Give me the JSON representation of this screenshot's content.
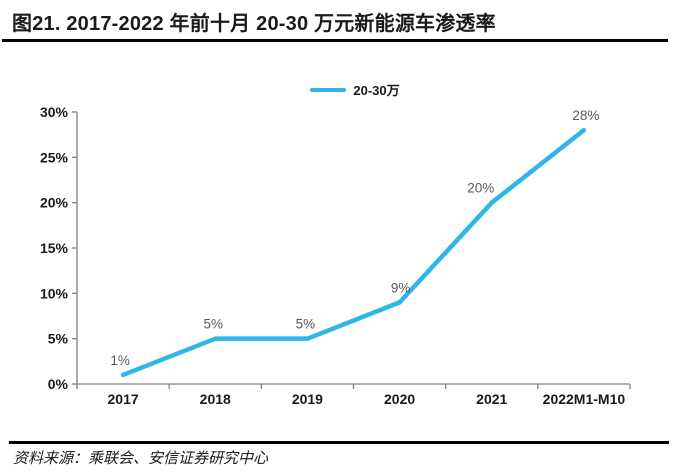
{
  "header": {
    "title": "图21. 2017-2022 年前十月 20-30 万元新能源车渗透率"
  },
  "legend": {
    "label": "20-30万"
  },
  "colors": {
    "line": "#2FB5E7",
    "axis": "#808080",
    "tick_label": "#1A1A1A",
    "data_label": "#595959",
    "separator": "#000000"
  },
  "chart_data": {
    "type": "line",
    "title": "图21. 2017-2022 年前十月 20-30 万元新能源车渗透率",
    "categories": [
      "2017",
      "2018",
      "2019",
      "2020",
      "2021",
      "2022M1-M10"
    ],
    "series": [
      {
        "name": "20-30万",
        "values": [
          1,
          5,
          5,
          9,
          20,
          28
        ]
      }
    ],
    "data_labels": [
      "1%",
      "5%",
      "5%",
      "9%",
      "20%",
      "28%"
    ],
    "yticks": [
      "0%",
      "5%",
      "10%",
      "15%",
      "20%",
      "25%",
      "30%"
    ],
    "ytick_values": [
      0,
      5,
      10,
      15,
      20,
      25,
      30
    ],
    "ylim": [
      0,
      30
    ],
    "xlabel": "",
    "ylabel": "",
    "grid": false,
    "legend_position": "top-center"
  },
  "footer": {
    "source": "资料来源：乘联会、安信证券研究中心"
  }
}
